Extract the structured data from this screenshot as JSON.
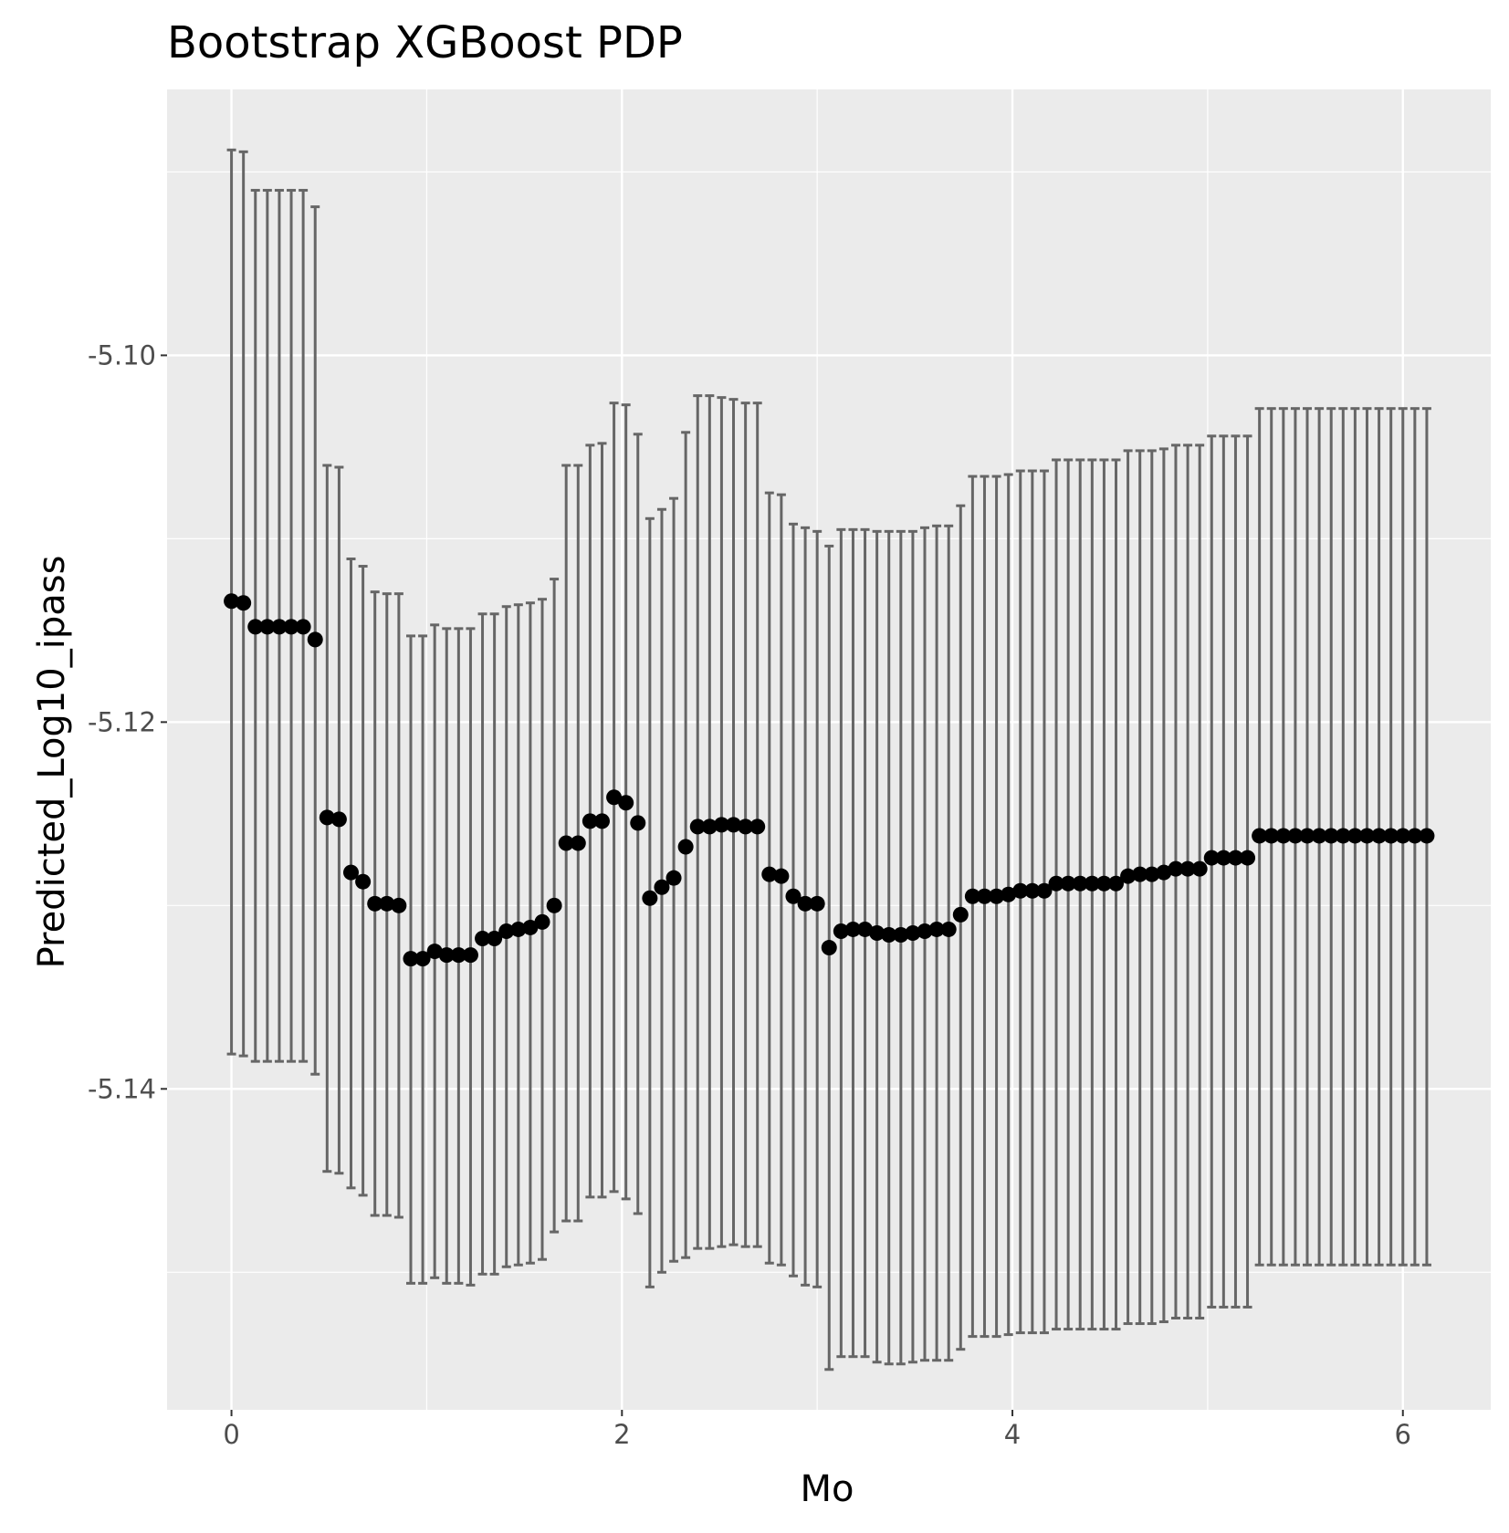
{
  "chart_data": {
    "type": "scatter",
    "title": "Bootstrap XGBoost PDP",
    "xlabel": "Mo",
    "ylabel": "Predicted_Log10_ipass",
    "xlim": [
      -0.33,
      6.45
    ],
    "ylim": [
      -5.1575,
      -5.0855
    ],
    "x_ticks": [
      0,
      2,
      4,
      6
    ],
    "x_tick_labels": [
      "0",
      "2",
      "4",
      "6"
    ],
    "y_ticks": [
      -5.1,
      -5.12,
      -5.14
    ],
    "y_tick_labels": [
      "-5.10",
      "-5.12",
      "-5.14"
    ],
    "grid": true,
    "legend": "none",
    "colors": {
      "panel": "#ebebeb",
      "grid": "#ffffff",
      "point": "#000000",
      "errorbar": "#666666",
      "tick_text": "#4d4d4d"
    },
    "series": [
      {
        "x": [
          0.0,
          0.0612,
          0.1224,
          0.1837,
          0.2449,
          0.3061,
          0.3673,
          0.4286,
          0.4898,
          0.551,
          0.6122,
          0.6735,
          0.7347,
          0.7959,
          0.8571,
          0.9184,
          0.9796,
          1.0408,
          1.102,
          1.1633,
          1.2245,
          1.2857,
          1.3469,
          1.4082,
          1.4694,
          1.5306,
          1.5918,
          1.6531,
          1.7143,
          1.7755,
          1.8367,
          1.898,
          1.9592,
          2.0204,
          2.0816,
          2.1429,
          2.2041,
          2.2653,
          2.3265,
          2.3878,
          2.449,
          2.5102,
          2.5714,
          2.6327,
          2.6939,
          2.7551,
          2.8163,
          2.8776,
          2.9388,
          3.0,
          3.0612,
          3.1224,
          3.1837,
          3.2449,
          3.3061,
          3.3673,
          3.4286,
          3.4898,
          3.551,
          3.6122,
          3.6735,
          3.7347,
          3.7959,
          3.8571,
          3.9184,
          3.9796,
          4.0408,
          4.102,
          4.1633,
          4.2245,
          4.2857,
          4.3469,
          4.4082,
          4.4694,
          4.5306,
          4.5918,
          4.6531,
          4.7143,
          4.7755,
          4.8367,
          4.898,
          4.9592,
          5.0204,
          5.0816,
          5.1429,
          5.2041,
          5.2653,
          5.3265,
          5.3878,
          5.449,
          5.5102,
          5.5714,
          5.6327,
          5.6939,
          5.7551,
          5.8163,
          5.8776,
          5.9388,
          6.0,
          6.0612,
          6.1224
        ],
        "y": [
          -5.1134,
          -5.1135,
          -5.1148,
          -5.1148,
          -5.1148,
          -5.1148,
          -5.1148,
          -5.1155,
          -5.1252,
          -5.1253,
          -5.1282,
          -5.1287,
          -5.1299,
          -5.1299,
          -5.13,
          -5.1329,
          -5.1329,
          -5.1325,
          -5.1327,
          -5.1327,
          -5.1327,
          -5.1318,
          -5.1318,
          -5.1314,
          -5.1313,
          -5.1312,
          -5.1309,
          -5.13,
          -5.1266,
          -5.1266,
          -5.1254,
          -5.1254,
          -5.1241,
          -5.1244,
          -5.1255,
          -5.1296,
          -5.129,
          -5.1285,
          -5.1268,
          -5.1257,
          -5.1257,
          -5.1256,
          -5.1256,
          -5.1257,
          -5.1257,
          -5.1283,
          -5.1284,
          -5.1295,
          -5.1299,
          -5.1299,
          -5.1323,
          -5.1314,
          -5.1313,
          -5.1313,
          -5.1315,
          -5.1316,
          -5.1316,
          -5.1315,
          -5.1314,
          -5.1313,
          -5.1313,
          -5.1305,
          -5.1295,
          -5.1295,
          -5.1295,
          -5.1294,
          -5.1292,
          -5.1292,
          -5.1292,
          -5.1288,
          -5.1288,
          -5.1288,
          -5.1288,
          -5.1288,
          -5.1288,
          -5.1284,
          -5.1283,
          -5.1283,
          -5.1282,
          -5.128,
          -5.128,
          -5.128,
          -5.1274,
          -5.1274,
          -5.1274,
          -5.1274,
          -5.1262,
          -5.1262,
          -5.1262,
          -5.1262,
          -5.1262,
          -5.1262,
          -5.1262,
          -5.1262,
          -5.1262,
          -5.1262,
          -5.1262,
          -5.1262,
          -5.1262,
          -5.1262,
          -5.1262
        ],
        "y_upper": [
          -5.0888,
          -5.0889,
          -5.091,
          -5.091,
          -5.091,
          -5.091,
          -5.091,
          -5.0919,
          -5.106,
          -5.1061,
          -5.1111,
          -5.1115,
          -5.1129,
          -5.113,
          -5.113,
          -5.1153,
          -5.1153,
          -5.1147,
          -5.1149,
          -5.1149,
          -5.1149,
          -5.1141,
          -5.1141,
          -5.1137,
          -5.1136,
          -5.1135,
          -5.1133,
          -5.1122,
          -5.106,
          -5.106,
          -5.1049,
          -5.1048,
          -5.1026,
          -5.1027,
          -5.1043,
          -5.1089,
          -5.1084,
          -5.1078,
          -5.1042,
          -5.1022,
          -5.1022,
          -5.1023,
          -5.1024,
          -5.1026,
          -5.1026,
          -5.1075,
          -5.1076,
          -5.1092,
          -5.1094,
          -5.1096,
          -5.1104,
          -5.1095,
          -5.1095,
          -5.1095,
          -5.1096,
          -5.1096,
          -5.1096,
          -5.1096,
          -5.1094,
          -5.1093,
          -5.1093,
          -5.1082,
          -5.1066,
          -5.1066,
          -5.1066,
          -5.1065,
          -5.1063,
          -5.1063,
          -5.1063,
          -5.1057,
          -5.1057,
          -5.1057,
          -5.1057,
          -5.1057,
          -5.1057,
          -5.1052,
          -5.1052,
          -5.1052,
          -5.1051,
          -5.1049,
          -5.1049,
          -5.1049,
          -5.1044,
          -5.1044,
          -5.1044,
          -5.1044,
          -5.1029,
          -5.1029,
          -5.1029,
          -5.1029,
          -5.1029,
          -5.1029,
          -5.1029,
          -5.1029,
          -5.1029,
          -5.1029,
          -5.1029,
          -5.1029,
          -5.1029,
          -5.1029,
          -5.1029
        ],
        "y_lower": [
          -5.1381,
          -5.1382,
          -5.1385,
          -5.1385,
          -5.1385,
          -5.1385,
          -5.1385,
          -5.1392,
          -5.1445,
          -5.1446,
          -5.1454,
          -5.1458,
          -5.1469,
          -5.1469,
          -5.147,
          -5.1506,
          -5.1506,
          -5.1503,
          -5.1506,
          -5.1506,
          -5.1507,
          -5.1501,
          -5.1501,
          -5.1497,
          -5.1496,
          -5.1495,
          -5.1493,
          -5.1478,
          -5.1472,
          -5.1472,
          -5.1459,
          -5.1459,
          -5.1456,
          -5.146,
          -5.1468,
          -5.1508,
          -5.15,
          -5.1494,
          -5.1492,
          -5.1487,
          -5.1487,
          -5.1486,
          -5.1485,
          -5.1486,
          -5.1486,
          -5.1495,
          -5.1496,
          -5.1502,
          -5.1507,
          -5.1508,
          -5.1553,
          -5.1546,
          -5.1546,
          -5.1546,
          -5.1549,
          -5.155,
          -5.155,
          -5.1549,
          -5.1548,
          -5.1548,
          -5.1548,
          -5.1542,
          -5.1535,
          -5.1535,
          -5.1535,
          -5.1534,
          -5.1533,
          -5.1533,
          -5.1533,
          -5.1531,
          -5.1531,
          -5.1531,
          -5.1531,
          -5.1531,
          -5.1531,
          -5.1528,
          -5.1528,
          -5.1528,
          -5.1527,
          -5.1525,
          -5.1525,
          -5.1525,
          -5.1519,
          -5.1519,
          -5.1519,
          -5.1519,
          -5.1496,
          -5.1496,
          -5.1496,
          -5.1496,
          -5.1496,
          -5.1496,
          -5.1496,
          -5.1496,
          -5.1496,
          -5.1496,
          -5.1496,
          -5.1496,
          -5.1496,
          -5.1496,
          -5.1496
        ]
      }
    ]
  }
}
